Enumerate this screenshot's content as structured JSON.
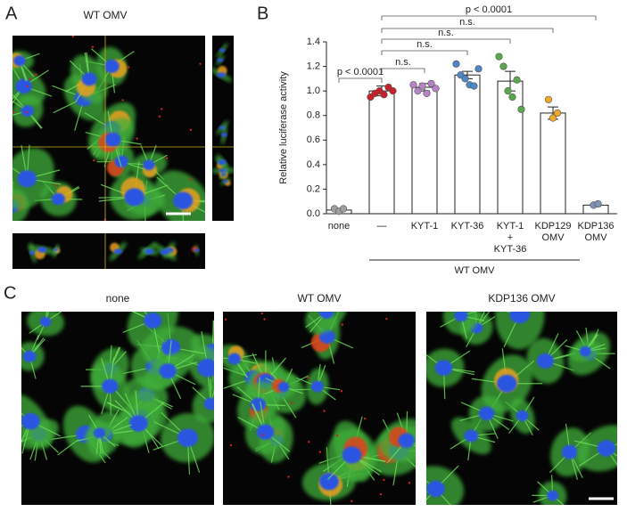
{
  "panel_labels": [
    "A",
    "B",
    "C"
  ],
  "panel_a": {
    "title": "WT OMV"
  },
  "panel_c": {
    "titles": [
      "none",
      "WT OMV",
      "KDP136 OMV"
    ]
  },
  "chart_data": {
    "type": "bar",
    "y_label": "Relative luciferase activity",
    "categories": [
      "none",
      "—",
      "KYT-1",
      "KYT-36",
      "KYT-1\n+\nKYT-36",
      "KDP129\nOMV",
      "KDP136\nOMV"
    ],
    "values": [
      0.03,
      1.0,
      1.03,
      1.13,
      1.08,
      0.82,
      0.07
    ],
    "errors": [
      0.01,
      0.04,
      0.03,
      0.03,
      0.08,
      0.05,
      0.01
    ],
    "points": [
      [
        0.04,
        0.02,
        0.04
      ],
      [
        0.95,
        0.98,
        1.0,
        0.97,
        1.03,
        1.0
      ],
      [
        1.05,
        1.0,
        1.04,
        0.98,
        1.06,
        1.02
      ],
      [
        1.22,
        1.13,
        1.1,
        1.05,
        1.04,
        1.18
      ],
      [
        1.28,
        1.2,
        1.0,
        0.95,
        1.09,
        0.85
      ],
      [
        0.93,
        0.78,
        0.82
      ],
      [
        0.07,
        0.08
      ]
    ],
    "point_colors": [
      "#a0a0a0",
      "#c8202a",
      "#b683c8",
      "#4f86c6",
      "#5aa84e",
      "#f0a828",
      "#7e92b6"
    ],
    "bar_color": "#ffffff",
    "ylim": [
      0,
      1.4
    ],
    "yticks": [
      {
        "value": 0,
        "label": "0.0"
      },
      0.2,
      0.4,
      0.6,
      0.8,
      {
        "value": 1,
        "label": "1.0"
      },
      1.2,
      1.4
    ],
    "annotations": [
      "p < 0.0001",
      "n.s.",
      "n.s.",
      "n.s.",
      "n.s.",
      "p < 0.0001"
    ],
    "group_label": "WT OMV"
  }
}
